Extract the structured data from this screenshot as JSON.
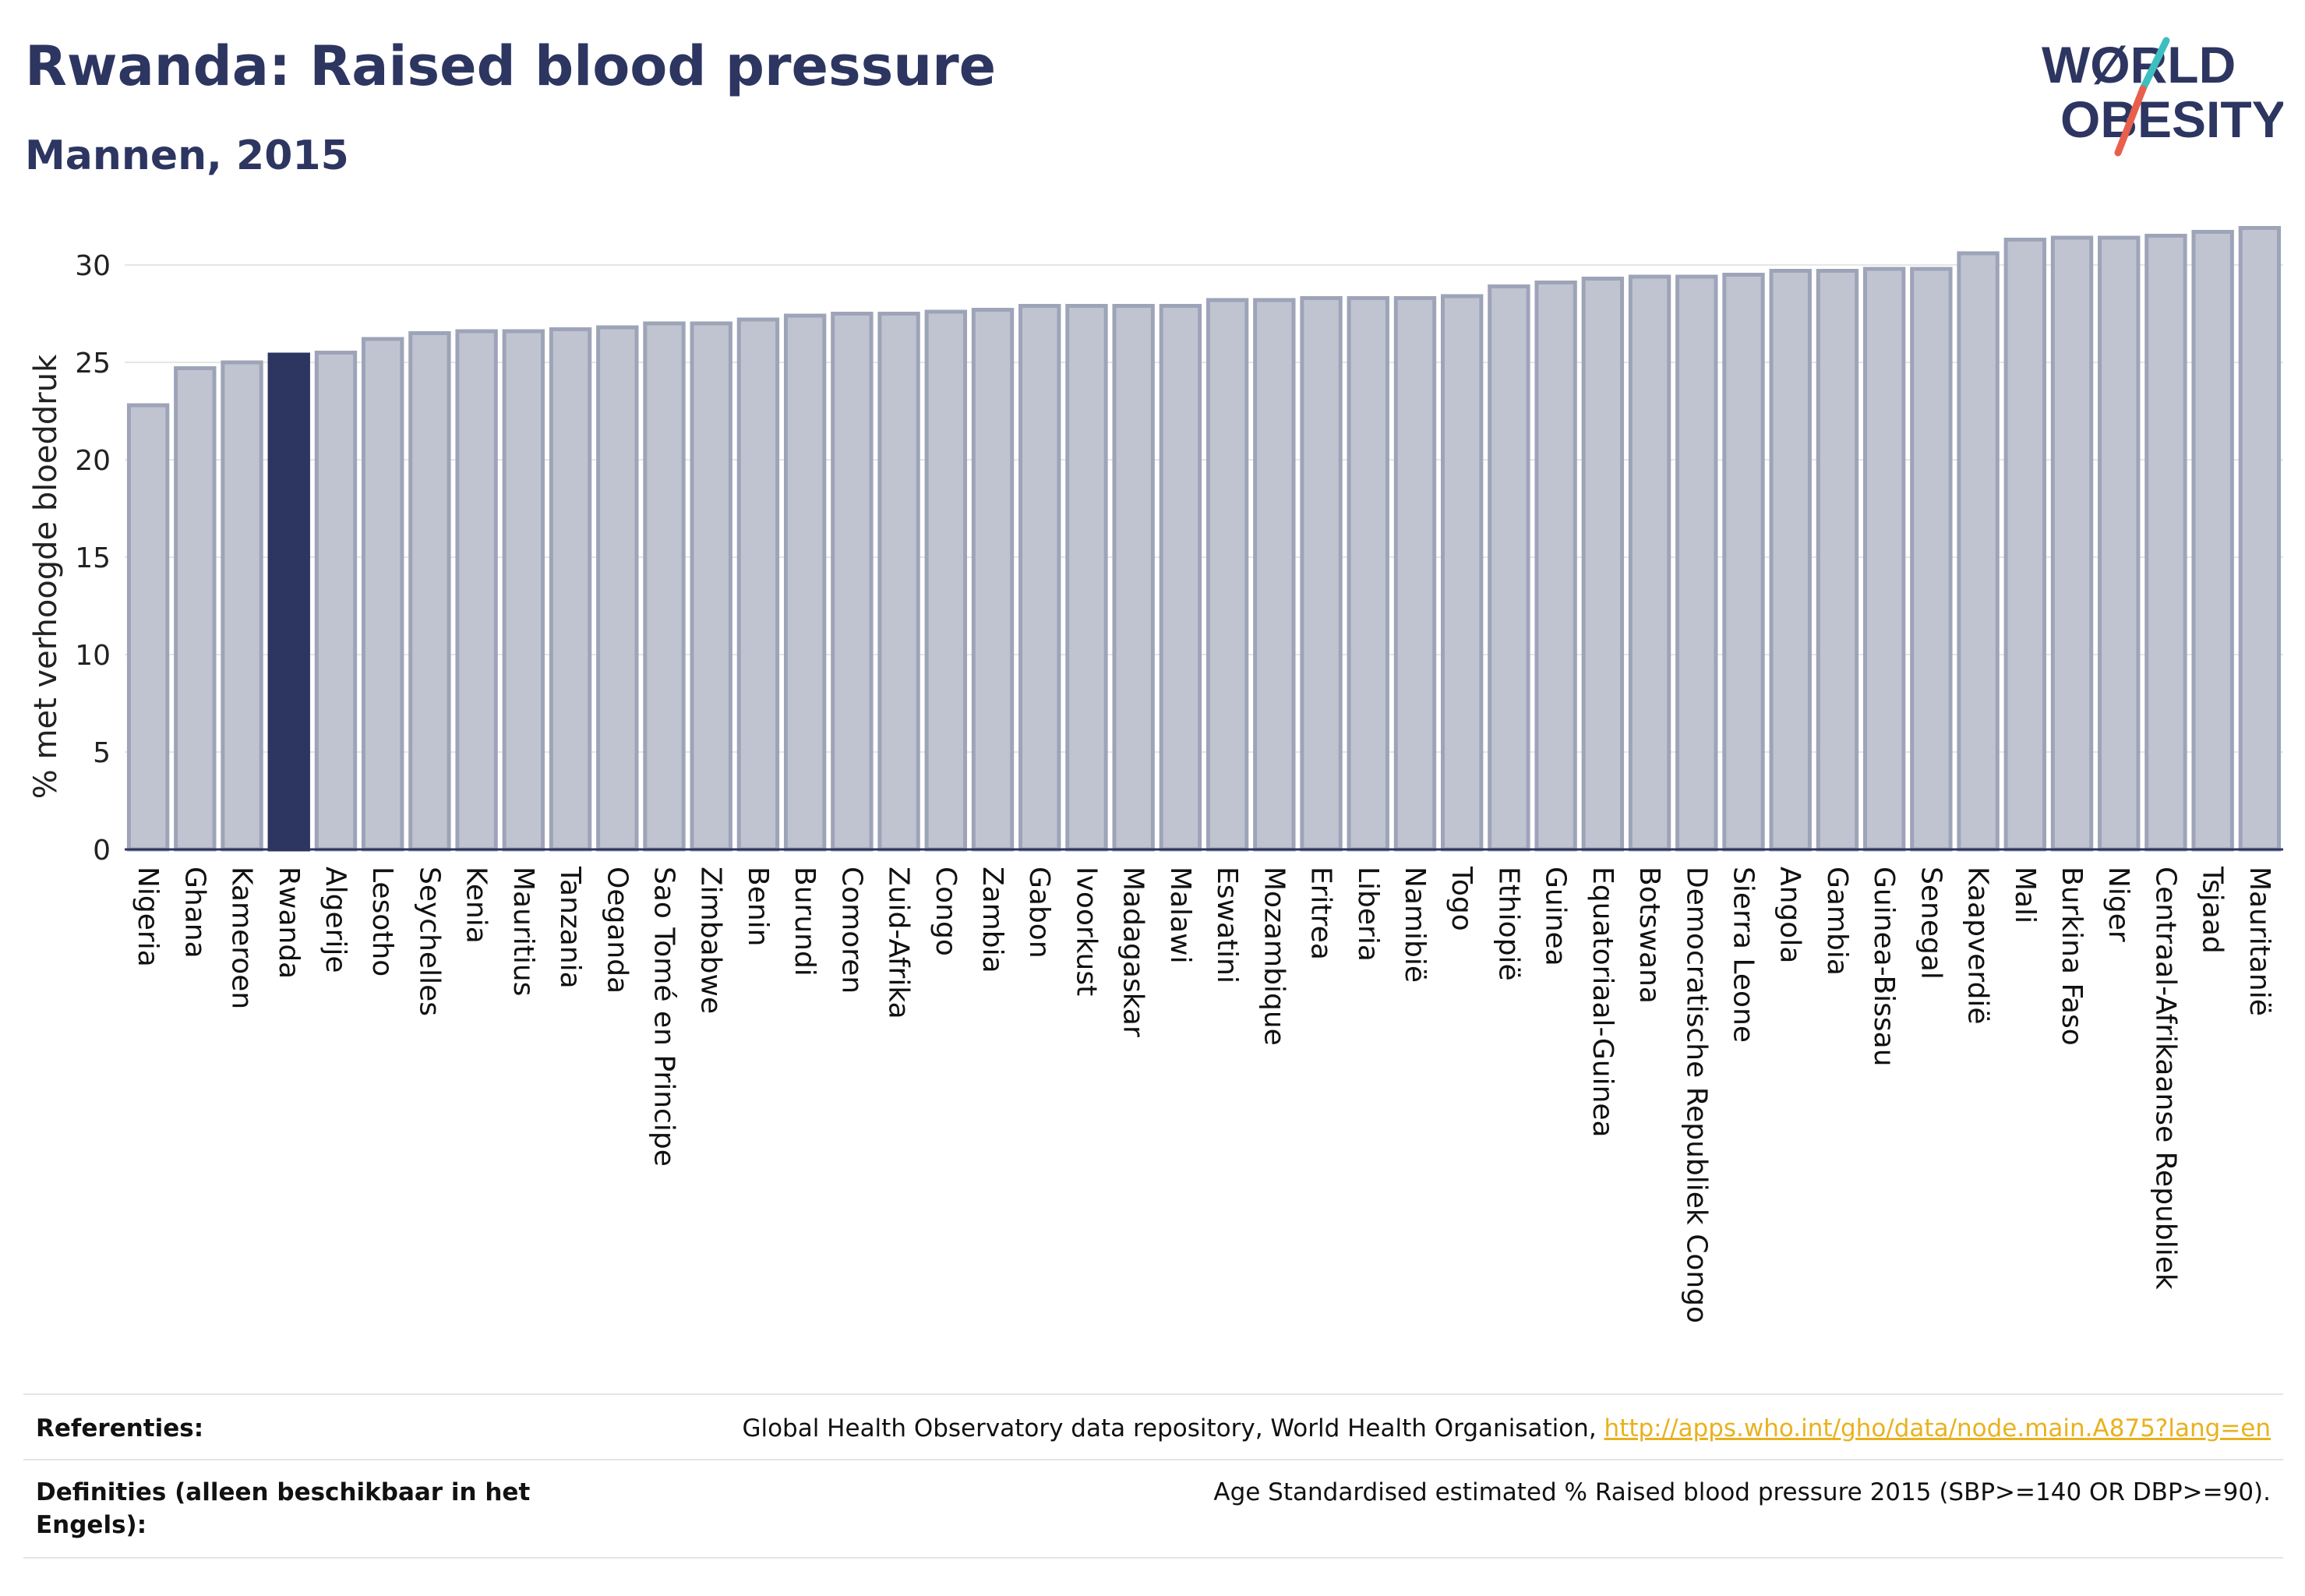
{
  "header": {
    "title": "Rwanda: Raised blood pressure",
    "subtitle": "Mannen, 2015"
  },
  "logo": {
    "line1": "WØRLD",
    "line2": "OBESITY",
    "colors": {
      "text": "#2d3561",
      "slash_red": "#e8604c",
      "slash_teal": "#3dbfc0"
    }
  },
  "chart_data": {
    "type": "bar",
    "ylabel": "% met verhoogde bloeddruk",
    "ylim": [
      0,
      32
    ],
    "yticks": [
      0,
      5,
      10,
      15,
      20,
      25,
      30
    ],
    "grid": true,
    "highlight": "Rwanda",
    "colors": {
      "bar": "#c0c4d0",
      "bar_edge": "#9ea4b8",
      "highlight": "#2d3561"
    },
    "categories": [
      "Nigeria",
      "Ghana",
      "Kameroen",
      "Rwanda",
      "Algerije",
      "Lesotho",
      "Seychelles",
      "Kenia",
      "Mauritius",
      "Tanzania",
      "Oeganda",
      "Sao Tomé en Principe",
      "Zimbabwe",
      "Benin",
      "Burundi",
      "Comoren",
      "Zuid-Afrika",
      "Congo",
      "Zambia",
      "Gabon",
      "Ivoorkust",
      "Madagaskar",
      "Malawi",
      "Eswatini",
      "Mozambique",
      "Eritrea",
      "Liberia",
      "Namibië",
      "Togo",
      "Ethiopië",
      "Guinea",
      "Equatoriaal-Guinea",
      "Botswana",
      "Democratische Republiek Congo",
      "Sierra Leone",
      "Angola",
      "Gambia",
      "Guinea-Bissau",
      "Senegal",
      "Kaapverdië",
      "Mali",
      "Burkina Faso",
      "Niger",
      "Centraal-Afrikaanse Republiek",
      "Tsjaad",
      "Mauritanië"
    ],
    "values": [
      22.8,
      24.7,
      25.0,
      25.4,
      25.5,
      26.2,
      26.5,
      26.6,
      26.6,
      26.7,
      26.8,
      27.0,
      27.0,
      27.2,
      27.4,
      27.5,
      27.5,
      27.6,
      27.7,
      27.9,
      27.9,
      27.9,
      27.9,
      28.2,
      28.2,
      28.3,
      28.3,
      28.3,
      28.4,
      28.9,
      29.1,
      29.3,
      29.4,
      29.4,
      29.5,
      29.7,
      29.7,
      29.8,
      29.8,
      30.6,
      31.3,
      31.4,
      31.4,
      31.5,
      31.7,
      31.9
    ]
  },
  "references": {
    "ref_label": "Referenties:",
    "ref_text": "Global Health Observatory data repository, World Health Organisation, ",
    "ref_link": "http://apps.who.int/gho/data/node.main.A875?lang=en",
    "def_label": "Definities (alleen beschikbaar in het Engels):",
    "def_text": "Age Standardised estimated % Raised blood pressure 2015 (SBP>=140 OR DBP>=90)."
  }
}
